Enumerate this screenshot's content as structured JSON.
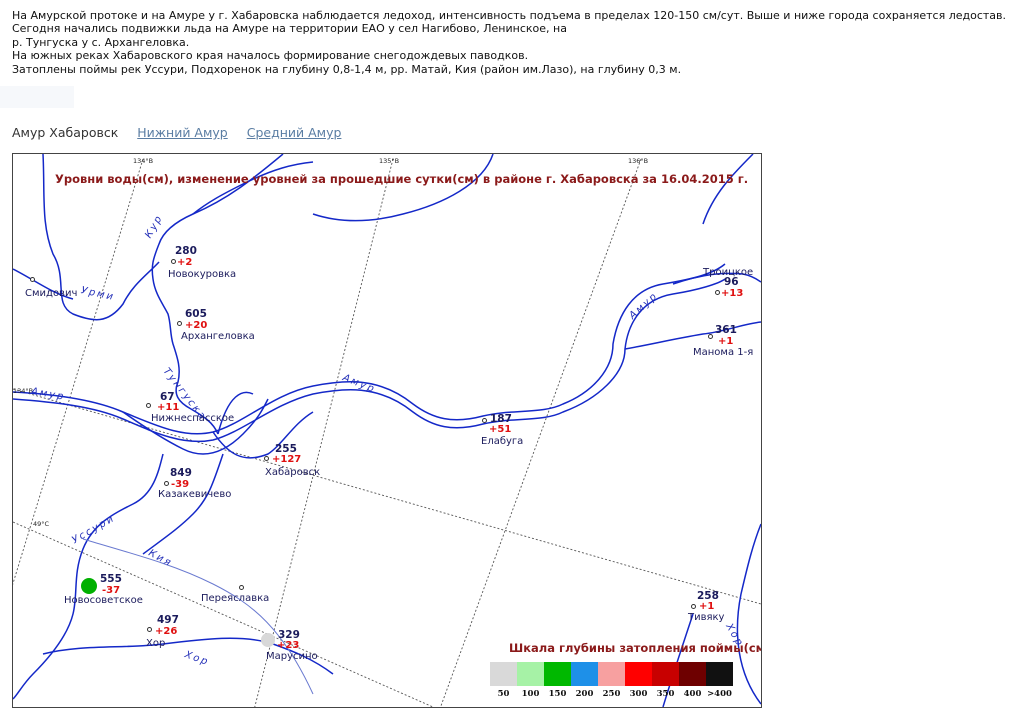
{
  "bulletin": {
    "lines": [
      "На Амурской протоке и на Амуре у г. Хабаровска наблюдается ледоход, интенсивность подъема в пределах 120-150 см/сут. Выше и ниже города сохраняется ледостав.",
      "Сегодня начались подвижки льда на Амуре на территории ЕАО у сел Нагибово, Ленинское, на",
      "р. Тунгуска у с. Архангеловка.",
      "На южных реках Хабаровского края началось формирование снегодождевых паводков.",
      "Затоплены поймы рек Уссури, Подхоренок на глубину 0,8-1,4 м, рр. Матай, Кия (район им.Лазо), на глубину 0,3 м."
    ]
  },
  "tabs": [
    {
      "label": "Амур Хабаровск",
      "active": true
    },
    {
      "label": "Нижний Амур",
      "active": false
    },
    {
      "label": "Средний Амур",
      "active": false
    }
  ],
  "map": {
    "title": "Уровни воды(см), изменение уровней за прошедшие сутки(см) в районе г. Хабаровска за 16.04.2015 г.",
    "grid_labels": {
      "lon134": "134°В",
      "lon135": "135°В",
      "lon136": "136°В",
      "lon134_left": "134°В",
      "lat49": "49°С"
    },
    "rivers": {
      "kur": "Кур",
      "urmi": "Урми",
      "tunguska": "Тунгуска",
      "amur1": "Амур",
      "amur2": "Амур",
      "amur3": "Амур",
      "ussuri": "Уссури",
      "kiya": "Кия",
      "khor": "Хор",
      "khor2": "Хор"
    },
    "stations": [
      {
        "id": "novokurovka",
        "name": "Новокуровка",
        "level": "280",
        "change": "+2"
      },
      {
        "id": "arkhangelovka",
        "name": "Архангеловка",
        "level": "605",
        "change": "+20"
      },
      {
        "id": "nizhnespasskoe",
        "name": "Нижнеспасское",
        "level": "67",
        "change": "+11"
      },
      {
        "id": "khabarovsk",
        "name": "Хабаровск",
        "level": "255",
        "change": "+127"
      },
      {
        "id": "kazakevichevo",
        "name": "Казакевичево",
        "level": "849",
        "change": "-39"
      },
      {
        "id": "elabuga",
        "name": "Елабуга",
        "level": "187",
        "change": "+51"
      },
      {
        "id": "troitskoe",
        "name": "Троицкое",
        "level": "96",
        "change": "+13"
      },
      {
        "id": "manoma",
        "name": "Манома 1-я",
        "level": "361",
        "change": "+1"
      },
      {
        "id": "novosovetskoe",
        "name": "Новосоветское",
        "level": "555",
        "change": "-37"
      },
      {
        "id": "khor",
        "name": "Хор",
        "level": "497",
        "change": "+26"
      },
      {
        "id": "marusino",
        "name": "Марусино",
        "level": "329",
        "change": "+23"
      },
      {
        "id": "tivyaku",
        "name": "Тивяку",
        "level": "258",
        "change": "+1"
      }
    ],
    "places": {
      "smidovich": "Смидович",
      "pereyaslavka": "Переяславка"
    },
    "flood_markers": {
      "novosovetskoe": "#00b000",
      "marusino": "#d8d8d8"
    }
  },
  "scale": {
    "title": "Шкала глубины затопления поймы(см)",
    "items": [
      {
        "label": "50",
        "color": "#d9d9d9"
      },
      {
        "label": "100",
        "color": "#a6f2a6"
      },
      {
        "label": "150",
        "color": "#00b800"
      },
      {
        "label": "200",
        "color": "#1e90e8"
      },
      {
        "label": "250",
        "color": "#f7a0a0"
      },
      {
        "label": "300",
        "color": "#ff0000"
      },
      {
        "label": "350",
        "color": "#c80000"
      },
      {
        "label": "400",
        "color": "#6e0000"
      },
      {
        "label": ">400",
        "color": "#111111"
      }
    ]
  }
}
